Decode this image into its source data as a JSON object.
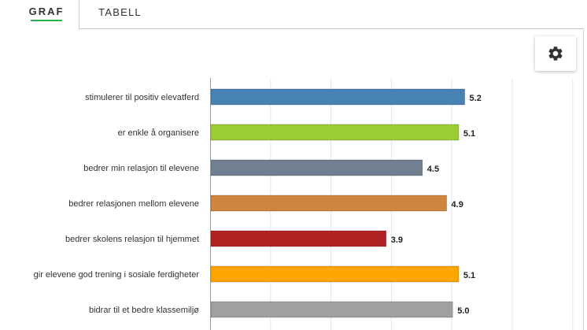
{
  "tabs": [
    {
      "label": "GRAF",
      "active": true
    },
    {
      "label": "TABELL",
      "active": false
    }
  ],
  "settings": {
    "icon": "gear-icon"
  },
  "chart_data": {
    "type": "bar",
    "orientation": "horizontal",
    "categories": [
      "stimulerer til positiv elevatferd",
      "er enkle å organisere",
      "bedrer min relasjon til elevene",
      "bedrer relasjonen mellom elevene",
      "bedrer skolens relasjon til hjemmet",
      "gir elevene god trening i sosiale ferdigheter",
      "bidrar til et bedre klassemiljø"
    ],
    "values": [
      5.2,
      5.1,
      4.5,
      4.9,
      3.9,
      5.1,
      5.0
    ],
    "value_labels": [
      "5.2",
      "5.1",
      "4.5",
      "4.9",
      "3.9",
      "5.1",
      "5.0"
    ],
    "colors": [
      "#4682b4",
      "#9acd32",
      "#708090",
      "#cd853f",
      "#b22222",
      "#ffa500",
      "#a0a0a0"
    ],
    "xlim": [
      1,
      7
    ],
    "grid": true,
    "legend": "none"
  }
}
